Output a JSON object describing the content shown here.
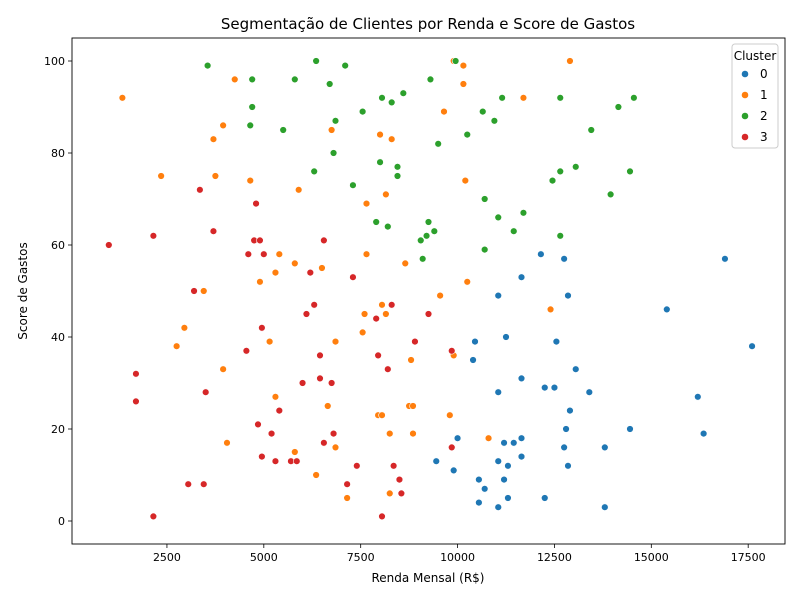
{
  "chart_data": {
    "type": "scatter",
    "title": "Segmentação de Clientes por Renda e Score de Gastos",
    "xlabel": "Renda Mensal (R$)",
    "ylabel": "Score de Gastos",
    "xlim": [
      50,
      18450
    ],
    "ylim": [
      -5,
      105
    ],
    "xticks": [
      2500,
      5000,
      7500,
      10000,
      12500,
      15000,
      17500
    ],
    "xtick_labels": [
      "2500",
      "5000",
      "7500",
      "10000",
      "12500",
      "15000",
      "17500"
    ],
    "yticks": [
      0,
      20,
      40,
      60,
      80,
      100
    ],
    "ytick_labels": [
      "0",
      "20",
      "40",
      "60",
      "80",
      "100"
    ],
    "grid": false,
    "legend": {
      "title": "Cluster",
      "placement": "top-right"
    },
    "series": [
      {
        "name": "0",
        "color": "#1f77b4",
        "points": [
          [
            12150,
            58
          ],
          [
            12750,
            57
          ],
          [
            16900,
            57
          ],
          [
            11650,
            53
          ],
          [
            11050,
            49
          ],
          [
            12850,
            49
          ],
          [
            15400,
            46
          ],
          [
            10450,
            39
          ],
          [
            12550,
            39
          ],
          [
            17600,
            38
          ],
          [
            11250,
            40
          ],
          [
            10400,
            35
          ],
          [
            13050,
            33
          ],
          [
            11650,
            31
          ],
          [
            12250,
            29
          ],
          [
            12500,
            29
          ],
          [
            11050,
            28
          ],
          [
            13400,
            28
          ],
          [
            16200,
            27
          ],
          [
            12900,
            24
          ],
          [
            12800,
            20
          ],
          [
            14450,
            20
          ],
          [
            16350,
            19
          ],
          [
            10000,
            18
          ],
          [
            11200,
            17
          ],
          [
            11450,
            17
          ],
          [
            11650,
            18
          ],
          [
            12750,
            16
          ],
          [
            13800,
            16
          ],
          [
            9450,
            13
          ],
          [
            11050,
            13
          ],
          [
            11650,
            14
          ],
          [
            11300,
            12
          ],
          [
            12850,
            12
          ],
          [
            9900,
            11
          ],
          [
            10550,
            9
          ],
          [
            11200,
            9
          ],
          [
            10700,
            7
          ],
          [
            11300,
            5
          ],
          [
            12250,
            5
          ],
          [
            10550,
            4
          ],
          [
            11050,
            3
          ],
          [
            13800,
            3
          ]
        ]
      },
      {
        "name": "1",
        "color": "#ff7f0e",
        "points": [
          [
            9900,
            100
          ],
          [
            12900,
            100
          ],
          [
            10150,
            99
          ],
          [
            4250,
            96
          ],
          [
            10150,
            95
          ],
          [
            1350,
            92
          ],
          [
            11700,
            92
          ],
          [
            9650,
            89
          ],
          [
            3950,
            86
          ],
          [
            6750,
            85
          ],
          [
            8000,
            84
          ],
          [
            3700,
            83
          ],
          [
            8300,
            83
          ],
          [
            2350,
            75
          ],
          [
            3750,
            75
          ],
          [
            4650,
            74
          ],
          [
            10200,
            74
          ],
          [
            5900,
            72
          ],
          [
            8150,
            71
          ],
          [
            7650,
            69
          ],
          [
            7650,
            58
          ],
          [
            5400,
            58
          ],
          [
            8650,
            56
          ],
          [
            5800,
            56
          ],
          [
            6500,
            55
          ],
          [
            5300,
            54
          ],
          [
            10250,
            52
          ],
          [
            4900,
            52
          ],
          [
            9550,
            49
          ],
          [
            3450,
            50
          ],
          [
            8050,
            47
          ],
          [
            12400,
            46
          ],
          [
            7600,
            45
          ],
          [
            8150,
            45
          ],
          [
            7550,
            41
          ],
          [
            2950,
            42
          ],
          [
            6850,
            39
          ],
          [
            5150,
            39
          ],
          [
            2750,
            38
          ],
          [
            9900,
            36
          ],
          [
            8800,
            35
          ],
          [
            3950,
            33
          ],
          [
            5300,
            27
          ],
          [
            6650,
            25
          ],
          [
            8750,
            25
          ],
          [
            8850,
            25
          ],
          [
            7950,
            23
          ],
          [
            8050,
            23
          ],
          [
            9800,
            23
          ],
          [
            8850,
            19
          ],
          [
            10800,
            18
          ],
          [
            8250,
            19
          ],
          [
            4050,
            17
          ],
          [
            6850,
            16
          ],
          [
            5800,
            15
          ],
          [
            6350,
            10
          ],
          [
            8250,
            6
          ],
          [
            7150,
            5
          ]
        ]
      },
      {
        "name": "2",
        "color": "#2ca02c",
        "points": [
          [
            6350,
            100
          ],
          [
            9950,
            100
          ],
          [
            3550,
            99
          ],
          [
            7100,
            99
          ],
          [
            4700,
            96
          ],
          [
            5800,
            96
          ],
          [
            9300,
            96
          ],
          [
            6700,
            95
          ],
          [
            8600,
            93
          ],
          [
            8050,
            92
          ],
          [
            11150,
            92
          ],
          [
            12650,
            92
          ],
          [
            14550,
            92
          ],
          [
            8300,
            91
          ],
          [
            4700,
            90
          ],
          [
            14150,
            90
          ],
          [
            7550,
            89
          ],
          [
            10650,
            89
          ],
          [
            6850,
            87
          ],
          [
            10950,
            87
          ],
          [
            4650,
            86
          ],
          [
            5500,
            85
          ],
          [
            13450,
            85
          ],
          [
            10250,
            84
          ],
          [
            9500,
            82
          ],
          [
            6800,
            80
          ],
          [
            8000,
            78
          ],
          [
            8450,
            77
          ],
          [
            13050,
            77
          ],
          [
            6300,
            76
          ],
          [
            12650,
            76
          ],
          [
            14450,
            76
          ],
          [
            8450,
            75
          ],
          [
            12450,
            74
          ],
          [
            7300,
            73
          ],
          [
            13950,
            71
          ],
          [
            10700,
            70
          ],
          [
            11700,
            67
          ],
          [
            11050,
            66
          ],
          [
            7900,
            65
          ],
          [
            9250,
            65
          ],
          [
            8200,
            64
          ],
          [
            9400,
            63
          ],
          [
            11450,
            63
          ],
          [
            12650,
            62
          ],
          [
            9200,
            62
          ],
          [
            9050,
            61
          ],
          [
            10700,
            59
          ],
          [
            9100,
            57
          ]
        ]
      },
      {
        "name": "3",
        "color": "#d62728",
        "points": [
          [
            3350,
            72
          ],
          [
            4800,
            69
          ],
          [
            3700,
            63
          ],
          [
            2150,
            62
          ],
          [
            4750,
            61
          ],
          [
            4900,
            61
          ],
          [
            6550,
            61
          ],
          [
            1000,
            60
          ],
          [
            4600,
            58
          ],
          [
            5000,
            58
          ],
          [
            6200,
            54
          ],
          [
            7300,
            53
          ],
          [
            3200,
            50
          ],
          [
            6300,
            47
          ],
          [
            8300,
            47
          ],
          [
            9250,
            45
          ],
          [
            6100,
            45
          ],
          [
            7900,
            44
          ],
          [
            4950,
            42
          ],
          [
            8900,
            39
          ],
          [
            9850,
            37
          ],
          [
            4550,
            37
          ],
          [
            6450,
            36
          ],
          [
            7950,
            36
          ],
          [
            8200,
            33
          ],
          [
            1700,
            32
          ],
          [
            6450,
            31
          ],
          [
            6750,
            30
          ],
          [
            6000,
            30
          ],
          [
            3500,
            28
          ],
          [
            1700,
            26
          ],
          [
            5400,
            24
          ],
          [
            4850,
            21
          ],
          [
            5200,
            19
          ],
          [
            6800,
            19
          ],
          [
            6550,
            17
          ],
          [
            9850,
            16
          ],
          [
            4950,
            14
          ],
          [
            5300,
            13
          ],
          [
            5700,
            13
          ],
          [
            5850,
            13
          ],
          [
            7400,
            12
          ],
          [
            8350,
            12
          ],
          [
            8500,
            9
          ],
          [
            3050,
            8
          ],
          [
            3450,
            8
          ],
          [
            7150,
            8
          ],
          [
            8550,
            6
          ],
          [
            2150,
            1
          ],
          [
            8050,
            1
          ]
        ]
      }
    ]
  }
}
